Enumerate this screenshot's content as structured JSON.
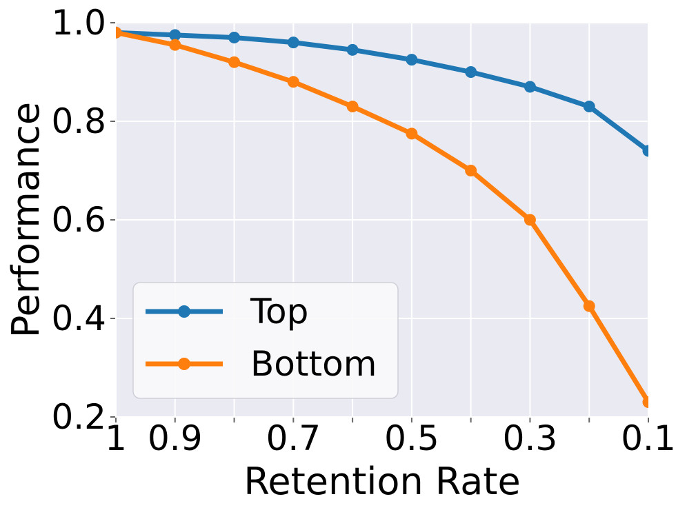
{
  "chart_data": {
    "type": "line",
    "title": "",
    "xlabel": "Retention Rate",
    "ylabel": "Performance",
    "x": [
      1.0,
      0.9,
      0.8,
      0.7,
      0.6,
      0.5,
      0.4,
      0.3,
      0.2,
      0.1
    ],
    "x_tick_labels": [
      "1",
      "0.9",
      "",
      "0.7",
      "",
      "0.5",
      "",
      "0.3",
      "",
      "0.1"
    ],
    "x_axis_note": "x axis runs from 1 (left) down to 0.1 (right)",
    "ylim": [
      0.2,
      1.0
    ],
    "yticks": [
      1.0,
      0.8,
      0.6,
      0.4,
      0.2
    ],
    "ytick_labels": [
      "1.0",
      "0.8",
      "0.6",
      "0.4",
      "0.2"
    ],
    "grid": true,
    "legend_position": "lower left",
    "series": [
      {
        "name": "Top",
        "color": "#1f77b4",
        "values": [
          0.98,
          0.975,
          0.97,
          0.96,
          0.945,
          0.925,
          0.9,
          0.87,
          0.83,
          0.74
        ]
      },
      {
        "name": "Bottom",
        "color": "#ff7f0e",
        "values": [
          0.98,
          0.955,
          0.92,
          0.88,
          0.83,
          0.775,
          0.7,
          0.6,
          0.425,
          0.23
        ]
      }
    ],
    "colors": {
      "plot_background": "#eaeaf2",
      "grid_line": "#ffffff",
      "tick_mark": "#666666",
      "text": "#000000",
      "legend_background": "#f9f9fb",
      "legend_border": "#cfcfd7"
    }
  }
}
